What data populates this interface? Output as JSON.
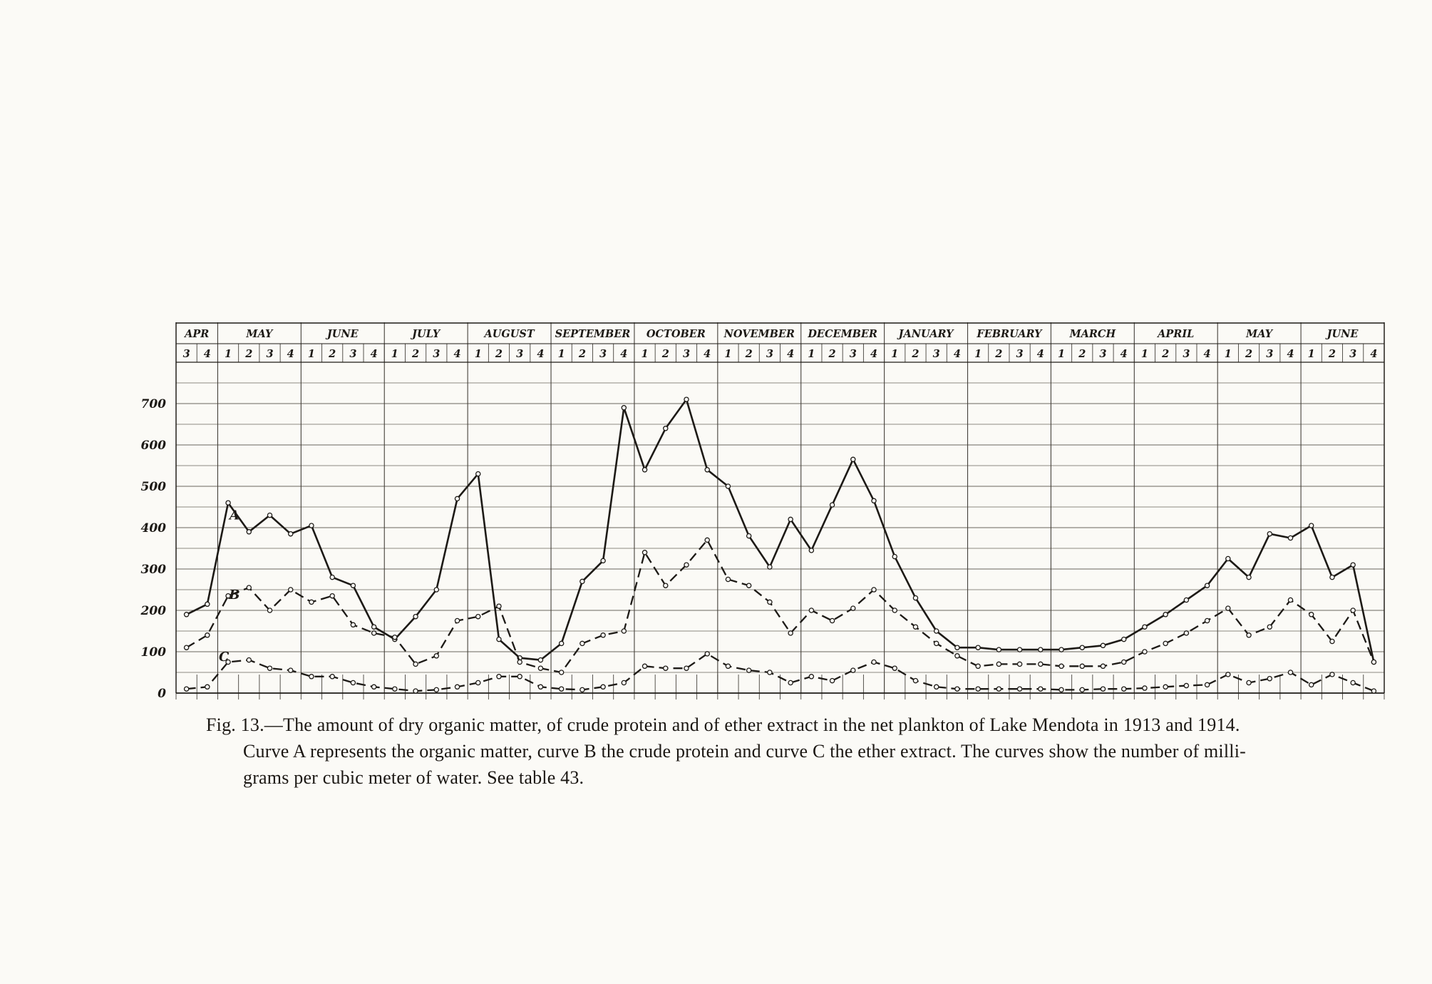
{
  "caption": {
    "line1": "Fig. 13.—The amount of dry organic matter, of crude protein and of ether extract in the net plankton of Lake Mendota in 1913 and 1914.",
    "line2": "Curve A represents the organic matter, curve B the crude protein and curve C the ether extract.  The curves show the number of milli-",
    "line3": "grams per cubic meter of water.  See table 43."
  },
  "chart_data": {
    "type": "line",
    "title": "",
    "xlabel": "",
    "ylabel": "",
    "ylim": [
      0,
      750
    ],
    "grid": "on",
    "legend_position": "none",
    "ink_color": "#1d1a16",
    "grid_color": "#6a655d",
    "paper_color": "#fbfaf6",
    "y_ticks": [
      0,
      100,
      200,
      300,
      400,
      500,
      600,
      700
    ],
    "months": [
      {
        "name": "APR",
        "weeks": [
          "3",
          "4"
        ]
      },
      {
        "name": "MAY",
        "weeks": [
          "1",
          "2",
          "3",
          "4"
        ]
      },
      {
        "name": "JUNE",
        "weeks": [
          "1",
          "2",
          "3",
          "4"
        ]
      },
      {
        "name": "JULY",
        "weeks": [
          "1",
          "2",
          "3",
          "4"
        ]
      },
      {
        "name": "AUGUST",
        "weeks": [
          "1",
          "2",
          "3",
          "4"
        ]
      },
      {
        "name": "SEPTEMBER",
        "weeks": [
          "1",
          "2",
          "3",
          "4"
        ]
      },
      {
        "name": "OCTOBER",
        "weeks": [
          "1",
          "2",
          "3",
          "4"
        ]
      },
      {
        "name": "NOVEMBER",
        "weeks": [
          "1",
          "2",
          "3",
          "4"
        ]
      },
      {
        "name": "DECEMBER",
        "weeks": [
          "1",
          "2",
          "3",
          "4"
        ]
      },
      {
        "name": "JANUARY",
        "weeks": [
          "1",
          "2",
          "3",
          "4"
        ]
      },
      {
        "name": "FEBRUARY",
        "weeks": [
          "1",
          "2",
          "3",
          "4"
        ]
      },
      {
        "name": "MARCH",
        "weeks": [
          "1",
          "2",
          "3",
          "4"
        ]
      },
      {
        "name": "APRIL",
        "weeks": [
          "1",
          "2",
          "3",
          "4"
        ]
      },
      {
        "name": "MAY",
        "weeks": [
          "1",
          "2",
          "3",
          "4"
        ]
      },
      {
        "name": "JUNE",
        "weeks": [
          "1",
          "2",
          "3",
          "4"
        ]
      }
    ],
    "series": [
      {
        "name": "A",
        "represents": "organic matter",
        "line": "solid",
        "values": [
          190,
          215,
          460,
          390,
          430,
          385,
          405,
          280,
          260,
          160,
          130,
          185,
          250,
          470,
          530,
          130,
          85,
          80,
          120,
          270,
          320,
          690,
          540,
          640,
          710,
          540,
          500,
          380,
          305,
          420,
          345,
          455,
          565,
          465,
          330,
          230,
          150,
          110,
          110,
          105,
          105,
          105,
          105,
          110,
          115,
          130,
          160,
          190,
          225,
          260,
          325,
          280,
          385,
          375,
          405,
          280,
          310,
          75
        ]
      },
      {
        "name": "B",
        "represents": "crude protein",
        "line": "dashed",
        "values": [
          110,
          140,
          235,
          255,
          200,
          250,
          220,
          235,
          165,
          145,
          135,
          70,
          90,
          175,
          185,
          210,
          75,
          60,
          50,
          120,
          140,
          150,
          340,
          260,
          310,
          370,
          275,
          260,
          220,
          145,
          200,
          175,
          205,
          250,
          200,
          160,
          120,
          90,
          65,
          70,
          70,
          70,
          65,
          65,
          65,
          75,
          100,
          120,
          145,
          175,
          205,
          140,
          160,
          225,
          190,
          125,
          200,
          75
        ]
      },
      {
        "name": "C",
        "represents": "ether extract",
        "line": "dashed",
        "values": [
          10,
          15,
          75,
          80,
          60,
          55,
          40,
          40,
          25,
          15,
          10,
          5,
          8,
          15,
          25,
          40,
          40,
          15,
          10,
          8,
          15,
          25,
          65,
          60,
          60,
          95,
          65,
          55,
          50,
          25,
          40,
          30,
          55,
          75,
          60,
          30,
          15,
          10,
          10,
          10,
          10,
          10,
          8,
          8,
          10,
          10,
          12,
          15,
          18,
          20,
          45,
          25,
          35,
          50,
          20,
          45,
          25,
          5
        ]
      }
    ],
    "curve_labels": [
      {
        "text": "A",
        "week": 2.3,
        "value": 420
      },
      {
        "text": "B",
        "week": 2.3,
        "value": 228
      },
      {
        "text": "C",
        "week": 1.8,
        "value": 78
      }
    ]
  }
}
